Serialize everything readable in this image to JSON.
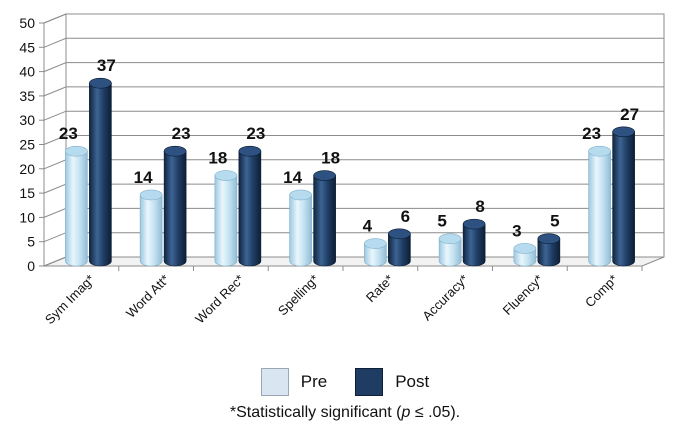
{
  "chart_data": {
    "type": "bar",
    "categories": [
      "Sym Imag*",
      "Word Att*",
      "Word Rec*",
      "Spelling*",
      "Rate*",
      "Accuracy*",
      "Fluency*",
      "Comp*"
    ],
    "series": [
      {
        "name": "Pre",
        "values": [
          23,
          14,
          18,
          14,
          4,
          5,
          3,
          23
        ],
        "color": "#cde9f6"
      },
      {
        "name": "Post",
        "values": [
          37,
          23,
          23,
          18,
          6,
          8,
          5,
          27
        ],
        "color": "#1f3d63"
      }
    ],
    "title": "",
    "xlabel": "",
    "ylabel": "",
    "ylim": [
      0,
      50
    ],
    "yticks": [
      0,
      5,
      10,
      15,
      20,
      25,
      30,
      35,
      40,
      45,
      50
    ],
    "grid": true,
    "legend_position": "bottom",
    "footnote": {
      "prefix": "*Statistically significant (",
      "italic": "p",
      "suffix": " ≤ .05)."
    }
  }
}
